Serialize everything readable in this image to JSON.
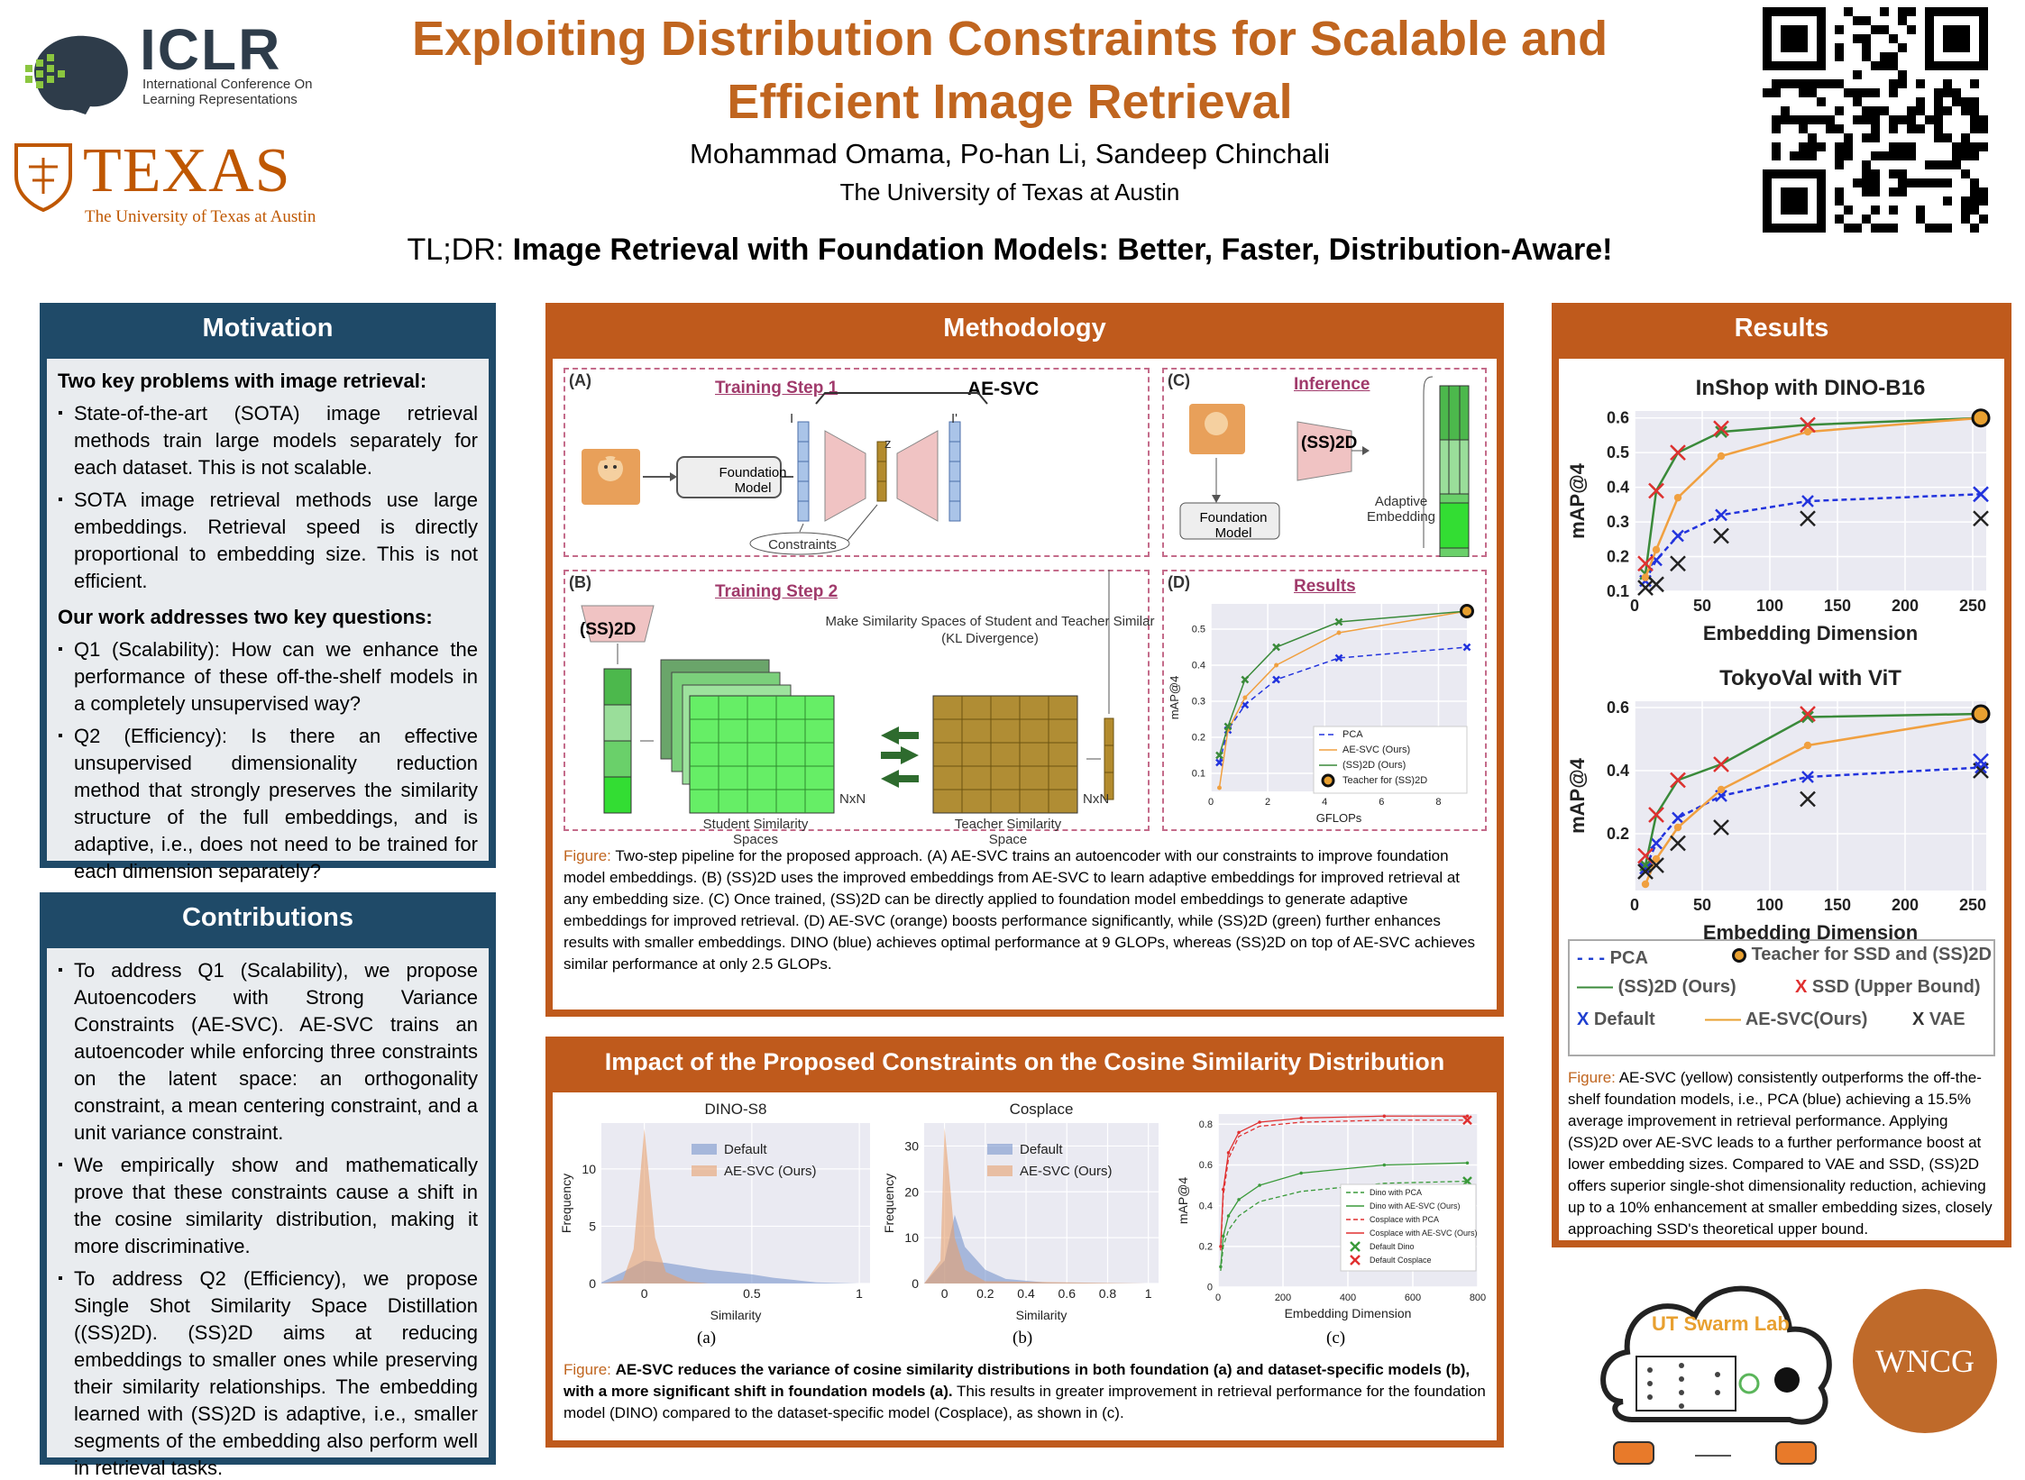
{
  "header": {
    "title": "Exploiting Distribution Constraints for Scalable and Efficient Image Retrieval",
    "authors": "Mohammad Omama, Po-han Li, Sandeep Chinchali",
    "affiliation": "The University of Texas at Austin",
    "tldr_prefix": "TL;DR:",
    "tldr_text": "Image Retrieval with Foundation Models: Better, Faster, Distribution-Aware!"
  },
  "logos": {
    "iclr": "ICLR",
    "iclr_sub": "International Conference On Learning Representations",
    "texas": "TEXAS",
    "texas_sub": "The University of Texas at Austin",
    "lab": "UT Swarm Lab",
    "wncg": "WNCG"
  },
  "motivation": {
    "heading": "Motivation",
    "problems_title": "Two key problems with image retrieval:",
    "problems": [
      "State-of-the-art (SOTA) image retrieval methods train large models separately for each dataset. This is not scalable.",
      "SOTA image retrieval methods use large embeddings. Retrieval speed is directly proportional to embedding size. This is not efficient."
    ],
    "questions_title": "Our work addresses two key questions:",
    "questions": [
      "Q1 (Scalability): How can we enhance the performance of these off-the-shelf models in a completely unsupervised way?",
      "Q2 (Efficiency): Is there an effective unsupervised dimensionality reduction method that strongly preserves the similarity structure of the full embeddings, and is adaptive, i.e., does not need to be trained for each dimension separately?"
    ]
  },
  "contributions": {
    "heading": "Contributions",
    "items": [
      "To address Q1 (Scalability), we propose Autoencoders with Strong Variance Constraints (AE-SVC). AE-SVC trains an autoencoder while enforcing three constraints on the latent space: an orthogonality constraint, a mean centering constraint, and a unit variance constraint.",
      "We empirically show and mathematically prove that these constraints cause a shift in the cosine similarity distribution, making it more discriminative.",
      "To address Q2 (Efficiency), we propose Single Shot Similarity Space Distillation ((SS)2D). (SS)2D aims at reducing embeddings to smaller ones while preserving their similarity relationships. The embedding learned with (SS)2D is adaptive, i.e., smaller segments of the embedding also perform well in retrieval tasks."
    ]
  },
  "methodology": {
    "heading": "Methodology",
    "labels": {
      "a": "(A)",
      "b": "(B)",
      "c": "(C)",
      "d": "(D)",
      "step1": "Training Step 1",
      "step2": "Training Step 2",
      "inference": "Inference",
      "results": "Results",
      "aesvc": "AE-SVC",
      "foundation": "Foundation Model",
      "constraints": "Constraints",
      "ss2d": "(SS)2D",
      "adaptive": "Adaptive Embedding",
      "make_sim": "Make Similarity Spaces of Student and Teacher Similar (KL Divergence)",
      "student": "Student Similarity Spaces",
      "teacher": "Teacher Similarity Space",
      "nxn": "NxN",
      "z": "z",
      "i": "I",
      "iprime": "I'"
    },
    "caption": "Two-step pipeline for the proposed approach. (A) AE-SVC trains an autoencoder with our constraints to improve foundation model embeddings. (B) (SS)2D uses the improved embeddings from AE-SVC to learn adaptive embeddings for improved retrieval at any embedding size. (C) Once trained, (SS)2D can be directly applied to foundation model embeddings to generate adaptive embeddings for improved retrieval. (D) AE-SVC (orange) boosts performance significantly, while (SS)2D (green) further enhances results with smaller embeddings. DINO (blue) achieves optimal performance at 9 GLOPs, whereas (SS)2D on top of AE-SVC achieves similar performance at only 2.5 GLOPs.",
    "caption_prefix": "Figure:"
  },
  "impact": {
    "heading": "Impact of the Proposed Constraints on the Cosine Similarity Distribution",
    "sub_a": "(a)",
    "sub_b": "(b)",
    "sub_c": "(c)",
    "caption_prefix": "Figure:",
    "caption_bold": "AE-SVC reduces the variance of cosine similarity distributions in both foundation (a) and dataset-specific models (b), with a more significant shift in foundation models (a).",
    "caption_rest": "This results in greater improvement in retrieval performance for the foundation model (DINO) compared to the dataset-specific model (Cosplace), as shown in (c)."
  },
  "results": {
    "heading": "Results",
    "legend": [
      "PCA",
      "Teacher for SSD and (SS)2D",
      "(SS)2D (Ours)",
      "SSD (Upper Bound)",
      "Default",
      "AE-SVC(Ours)",
      "VAE"
    ],
    "caption_prefix": "Figure:",
    "caption": "AE-SVC (yellow) consistently outperforms the off-the-shelf foundation models, i.e., PCA (blue) achieving a 15.5% average improvement in retrieval performance. Applying (SS)2D over AE-SVC leads to a further performance boost at lower embedding sizes. Compared to VAE and SSD, (SS)2D offers superior single-shot dimensionality reduction, achieving up to a 10% enhancement at smaller embedding sizes, closely approaching SSD's theoretical upper bound."
  },
  "chart_data": [
    {
      "type": "line",
      "id": "inshop",
      "title": "InShop with DINO-B16",
      "xlabel": "Embedding Dimension",
      "ylabel": "mAP@4",
      "xlim": [
        0,
        260
      ],
      "ylim": [
        0.1,
        0.62
      ],
      "xticks": [
        0,
        50,
        100,
        150,
        200,
        250
      ],
      "yticks": [
        0.1,
        0.2,
        0.3,
        0.4,
        0.5,
        0.6
      ],
      "series": [
        {
          "name": "PCA",
          "x": [
            8,
            16,
            32,
            64,
            128,
            256
          ],
          "y": [
            0.13,
            0.19,
            0.26,
            0.32,
            0.36,
            0.38
          ]
        },
        {
          "name": "(SS)2D (Ours)",
          "x": [
            8,
            16,
            32,
            64,
            128,
            256
          ],
          "y": [
            0.15,
            0.39,
            0.5,
            0.56,
            0.58,
            0.6
          ]
        },
        {
          "name": "AE-SVC(Ours)",
          "x": [
            8,
            16,
            32,
            64,
            128,
            256
          ],
          "y": [
            0.14,
            0.22,
            0.37,
            0.49,
            0.56,
            0.6
          ]
        },
        {
          "name": "SSD (Upper Bound)",
          "x": [
            8,
            16,
            32,
            64,
            128
          ],
          "y": [
            0.18,
            0.39,
            0.5,
            0.57,
            0.58
          ]
        },
        {
          "name": "VAE",
          "x": [
            8,
            16,
            32,
            64,
            128,
            256
          ],
          "y": [
            0.11,
            0.12,
            0.18,
            0.26,
            0.31,
            0.31
          ]
        },
        {
          "name": "Default",
          "x": [
            256
          ],
          "y": [
            0.38
          ]
        },
        {
          "name": "Teacher for SSD and (SS)2D",
          "x": [
            256
          ],
          "y": [
            0.6
          ]
        }
      ]
    },
    {
      "type": "line",
      "id": "tokyo",
      "title": "TokyoVal with ViT",
      "xlabel": "Embedding Dimension",
      "ylabel": "mAP@4",
      "xlim": [
        0,
        260
      ],
      "ylim": [
        0.02,
        0.62
      ],
      "xticks": [
        0,
        50,
        100,
        150,
        200,
        250
      ],
      "yticks": [
        0.2,
        0.4,
        0.6
      ],
      "series": [
        {
          "name": "PCA",
          "x": [
            8,
            16,
            32,
            64,
            128,
            256
          ],
          "y": [
            0.09,
            0.17,
            0.25,
            0.32,
            0.38,
            0.41
          ]
        },
        {
          "name": "(SS)2D (Ours)",
          "x": [
            8,
            16,
            32,
            64,
            128,
            256
          ],
          "y": [
            0.1,
            0.26,
            0.37,
            0.42,
            0.57,
            0.58
          ]
        },
        {
          "name": "AE-SVC(Ours)",
          "x": [
            8,
            16,
            32,
            64,
            128,
            256
          ],
          "y": [
            0.04,
            0.12,
            0.22,
            0.34,
            0.48,
            0.57
          ]
        },
        {
          "name": "SSD (Upper Bound)",
          "x": [
            8,
            16,
            32,
            64,
            128
          ],
          "y": [
            0.13,
            0.26,
            0.37,
            0.42,
            0.58
          ]
        },
        {
          "name": "VAE",
          "x": [
            8,
            16,
            32,
            64,
            128,
            256
          ],
          "y": [
            0.08,
            0.1,
            0.17,
            0.22,
            0.31,
            0.4
          ]
        },
        {
          "name": "Default",
          "x": [
            256
          ],
          "y": [
            0.43
          ]
        },
        {
          "name": "Teacher for SSD and (SS)2D",
          "x": [
            256
          ],
          "y": [
            0.58
          ]
        }
      ]
    },
    {
      "type": "line",
      "id": "glops",
      "title": "Results",
      "xlabel": "GFLOPs",
      "ylabel": "mAP@4",
      "xlim": [
        0,
        9
      ],
      "ylim": [
        0.05,
        0.57
      ],
      "xticks": [
        0,
        2,
        4,
        6,
        8
      ],
      "yticks": [
        0.1,
        0.2,
        0.3,
        0.4,
        0.5
      ],
      "series": [
        {
          "name": "PCA",
          "x": [
            0.3,
            0.6,
            1.2,
            2.3,
            4.5,
            9
          ],
          "y": [
            0.13,
            0.22,
            0.29,
            0.36,
            0.42,
            0.45
          ]
        },
        {
          "name": "AE-SVC (Ours)",
          "x": [
            0.3,
            0.6,
            1.2,
            2.3,
            4.5,
            9
          ],
          "y": [
            0.06,
            0.22,
            0.31,
            0.4,
            0.49,
            0.55
          ]
        },
        {
          "name": "(SS)2D (Ours)",
          "x": [
            0.3,
            0.6,
            1.2,
            2.3,
            4.5,
            9
          ],
          "y": [
            0.15,
            0.23,
            0.36,
            0.45,
            0.52,
            0.55
          ]
        },
        {
          "name": "Teacher for (SS)2D",
          "x": [
            9
          ],
          "y": [
            0.55
          ]
        }
      ]
    },
    {
      "type": "line",
      "id": "embed",
      "title": "",
      "xlabel": "Embedding Dimension",
      "ylabel": "mAP@4",
      "xlim": [
        0,
        800
      ],
      "ylim": [
        0.0,
        0.85
      ],
      "xticks": [
        0,
        200,
        400,
        600,
        800
      ],
      "yticks": [
        0.0,
        0.2,
        0.4,
        0.6,
        0.8
      ],
      "series": [
        {
          "name": "Dino with PCA",
          "x": [
            8,
            16,
            32,
            64,
            128,
            256,
            512,
            768
          ],
          "y": [
            0.08,
            0.2,
            0.28,
            0.35,
            0.42,
            0.47,
            0.51,
            0.52
          ]
        },
        {
          "name": "Dino with AE-SVC (Ours)",
          "x": [
            8,
            16,
            32,
            64,
            128,
            256,
            512,
            768
          ],
          "y": [
            0.1,
            0.25,
            0.35,
            0.43,
            0.5,
            0.56,
            0.6,
            0.61
          ]
        },
        {
          "name": "Cosplace with PCA",
          "x": [
            8,
            16,
            32,
            64,
            128,
            256,
            512,
            768
          ],
          "y": [
            0.18,
            0.45,
            0.63,
            0.74,
            0.79,
            0.81,
            0.82,
            0.82
          ]
        },
        {
          "name": "Cosplace with AE-SVC (Ours)",
          "x": [
            8,
            16,
            32,
            64,
            128,
            256,
            512,
            768
          ],
          "y": [
            0.2,
            0.48,
            0.66,
            0.76,
            0.81,
            0.83,
            0.84,
            0.84
          ]
        },
        {
          "name": "Default Dino",
          "x": [
            768
          ],
          "y": [
            0.52
          ]
        },
        {
          "name": "Default Cosplace",
          "x": [
            768
          ],
          "y": [
            0.82
          ]
        }
      ]
    },
    {
      "type": "area",
      "id": "dino",
      "title": "DINO-S8",
      "xlabel": "Similarity",
      "ylabel": "Frequency",
      "xlim": [
        -0.2,
        1.05
      ],
      "ylim": [
        0,
        14
      ],
      "xticks": [
        0.0,
        0.5,
        1.0
      ],
      "yticks": [
        0,
        5,
        10
      ],
      "series": [
        {
          "name": "Default",
          "x": [
            -0.2,
            -0.1,
            0.0,
            0.1,
            0.2,
            0.3,
            0.4,
            0.5,
            0.6,
            0.7,
            0.8,
            1.0
          ],
          "y": [
            0.1,
            1.0,
            2.0,
            1.8,
            1.5,
            1.2,
            1.0,
            0.8,
            0.5,
            0.3,
            0.1,
            0
          ]
        },
        {
          "name": "AE-SVC (Ours)",
          "x": [
            -0.2,
            -0.1,
            -0.05,
            0.0,
            0.05,
            0.1,
            0.2,
            0.3,
            1.0
          ],
          "y": [
            0,
            0.3,
            3,
            13.5,
            4,
            1,
            0.2,
            0,
            0
          ]
        }
      ]
    },
    {
      "type": "area",
      "id": "cosplace",
      "title": "Cosplace",
      "xlabel": "Similarity",
      "ylabel": "Frequency",
      "xlim": [
        -0.1,
        1.05
      ],
      "ylim": [
        0,
        35
      ],
      "xticks": [
        0.0,
        0.2,
        0.4,
        0.6,
        0.8,
        1.0
      ],
      "yticks": [
        0,
        10,
        20,
        30
      ],
      "series": [
        {
          "name": "Default",
          "x": [
            -0.1,
            0.0,
            0.05,
            0.1,
            0.2,
            0.3,
            0.5,
            1.0
          ],
          "y": [
            0,
            5,
            15,
            8,
            3,
            1,
            0.2,
            0
          ]
        },
        {
          "name": "AE-SVC (Ours)",
          "x": [
            -0.1,
            -0.02,
            0.0,
            0.02,
            0.05,
            0.1,
            0.2,
            1.0
          ],
          "y": [
            0,
            5,
            34,
            25,
            10,
            3,
            0.5,
            0
          ]
        }
      ]
    }
  ]
}
